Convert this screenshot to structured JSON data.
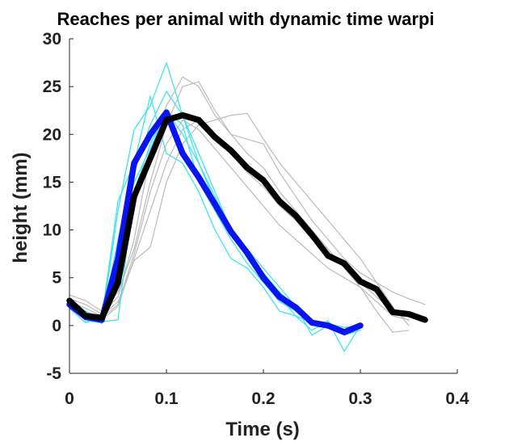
{
  "chart_data": {
    "type": "line",
    "title": "Reaches per animal with dynamic time warpi",
    "xlabel": "Time (s)",
    "ylabel": "height (mm)",
    "xlim": [
      0,
      0.4
    ],
    "ylim": [
      -5,
      30
    ],
    "xticks": [
      "0",
      "0.1",
      "0.2",
      "0.3",
      "0.4"
    ],
    "yticks": [
      "-5",
      "0",
      "5",
      "10",
      "15",
      "20",
      "25",
      "30"
    ],
    "grid": false,
    "legend": "none",
    "series": [
      {
        "color": "#bbbbbb",
        "width": 1.2,
        "x": [
          0,
          0.0167,
          0.0333,
          0.05,
          0.0667,
          0.0833,
          0.1,
          0.1167,
          0.1333,
          0.15,
          0.1667,
          0.1833,
          0.2,
          0.2167,
          0.2333,
          0.25,
          0.2667,
          0.2833,
          0.3,
          0.3167,
          0.3333,
          0.35
        ],
        "y": [
          3.2,
          2.6,
          1.5,
          3.5,
          8,
          15,
          21,
          25,
          25.5,
          22.5,
          20,
          18,
          16.5,
          14,
          12,
          10,
          8,
          6,
          4,
          2.5,
          1,
          0.6
        ]
      },
      {
        "color": "#bbbbbb",
        "width": 1.2,
        "x": [
          0,
          0.0167,
          0.0333,
          0.05,
          0.0667,
          0.0833,
          0.1,
          0.1167,
          0.1333,
          0.15,
          0.1667,
          0.1833,
          0.2,
          0.2167,
          0.2333,
          0.25,
          0.2667,
          0.2833,
          0.3,
          0.3167,
          0.3333,
          0.35
        ],
        "y": [
          2.5,
          1.8,
          1,
          2.5,
          6.8,
          8.2,
          15,
          19,
          21,
          21.5,
          22,
          22.2,
          19.5,
          17,
          15,
          13,
          11,
          9,
          7,
          4.5,
          2,
          0
        ]
      },
      {
        "color": "#bbbbbb",
        "width": 1.2,
        "x": [
          0,
          0.0167,
          0.0333,
          0.05,
          0.0667,
          0.0833,
          0.1,
          0.1167,
          0.1333,
          0.15,
          0.1667,
          0.1833,
          0.2,
          0.2167,
          0.2333,
          0.25,
          0.2667,
          0.2833,
          0.3,
          0.3167,
          0.3333,
          0.35,
          0.3667
        ],
        "y": [
          2.8,
          2.2,
          1.2,
          3,
          9,
          18,
          23,
          26,
          25,
          22,
          20,
          19.5,
          19,
          16,
          13.5,
          11,
          9,
          7,
          5.5,
          4.5,
          3.5,
          2.8,
          2.2
        ]
      },
      {
        "color": "#bbbbbb",
        "width": 1.2,
        "x": [
          0,
          0.0167,
          0.0333,
          0.05,
          0.0667,
          0.0833,
          0.1,
          0.1167,
          0.1333,
          0.15,
          0.1667,
          0.1833,
          0.2,
          0.2167,
          0.2333,
          0.25,
          0.2667,
          0.2833,
          0.3,
          0.3167,
          0.3333,
          0.35
        ],
        "y": [
          2,
          1.5,
          0.8,
          2.2,
          7.5,
          14,
          19,
          21.5,
          20.5,
          18.5,
          16.5,
          14.5,
          12.5,
          10.5,
          9,
          7.5,
          6,
          5,
          4,
          1.5,
          -0.7,
          -0.5
        ]
      },
      {
        "color": "#bbbbbb",
        "width": 1.2,
        "x": [
          0,
          0.0167,
          0.0333,
          0.05,
          0.0667,
          0.0833,
          0.1,
          0.1167,
          0.1333,
          0.15,
          0.1667,
          0.1833,
          0.2,
          0.2167,
          0.2333,
          0.25,
          0.2667,
          0.2833,
          0.3,
          0.3167,
          0.3333,
          0.35
        ],
        "y": [
          1.8,
          1.2,
          0.6,
          2,
          7,
          12,
          17,
          20.5,
          21.5,
          20,
          18,
          16,
          14.5,
          12.5,
          11,
          9,
          8,
          6,
          4.5,
          3,
          1.5,
          0.5
        ]
      },
      {
        "color": "#3fe3ee",
        "width": 1.3,
        "x": [
          0,
          0.0167,
          0.0333,
          0.05,
          0.0667,
          0.0833,
          0.1,
          0.1167,
          0.1333,
          0.15,
          0.1667,
          0.1833,
          0.2,
          0.2167,
          0.2333,
          0.25,
          0.2667,
          0.2833,
          0.3
        ],
        "y": [
          2.5,
          0.5,
          0.3,
          12,
          20.5,
          23,
          27.5,
          22,
          17,
          13,
          10,
          7,
          5,
          3,
          1,
          0.3,
          0,
          -1,
          -0.5
        ]
      },
      {
        "color": "#3fe3ee",
        "width": 1.3,
        "x": [
          0,
          0.0167,
          0.0333,
          0.05,
          0.0667,
          0.0833,
          0.1,
          0.1167,
          0.1333,
          0.15,
          0.1667,
          0.1833,
          0.2,
          0.2167,
          0.2333,
          0.25,
          0.2667,
          0.2833,
          0.3
        ],
        "y": [
          1.8,
          0.3,
          0.8,
          13,
          17,
          24,
          18,
          17,
          14,
          10,
          7,
          6,
          4,
          1.5,
          1,
          -0.5,
          0.5,
          -2.7,
          0
        ]
      },
      {
        "color": "#3fe3ee",
        "width": 1.3,
        "x": [
          0,
          0.0167,
          0.0333,
          0.05,
          0.0667,
          0.0833,
          0.1,
          0.1167,
          0.1333,
          0.15,
          0.1667,
          0.1833,
          0.2,
          0.2167,
          0.2333,
          0.25,
          0.2667,
          0.2833,
          0.3
        ],
        "y": [
          2.2,
          0.8,
          0.5,
          9,
          16,
          21,
          24.5,
          22,
          18,
          14,
          10,
          8,
          6,
          4,
          2,
          -1,
          0,
          -0.7,
          0
        ]
      },
      {
        "color": "#3fe3ee",
        "width": 1.3,
        "x": [
          0,
          0.0167,
          0.0333,
          0.05,
          0.0667,
          0.0833,
          0.1,
          0.1167,
          0.1333,
          0.15,
          0.1667,
          0.1833,
          0.2,
          0.2167,
          0.2333,
          0.25,
          0.2667,
          0.2833,
          0.3
        ],
        "y": [
          2.6,
          1.5,
          0.4,
          0.6,
          14,
          19,
          22.5,
          20,
          17,
          13.5,
          10,
          7.5,
          5.5,
          3.5,
          2,
          0.5,
          0.2,
          -0.2,
          0
        ]
      },
      {
        "color": "#3fe3ee",
        "width": 1.3,
        "x": [
          0,
          0.0167,
          0.0333,
          0.05,
          0.0667,
          0.0833,
          0.1,
          0.1167,
          0.1333,
          0.15,
          0.1667,
          0.1833,
          0.2,
          0.2167,
          0.2333,
          0.25,
          0.2667,
          0.2833,
          0.3
        ],
        "y": [
          2,
          1.2,
          0.2,
          8,
          15,
          18.5,
          22.5,
          21,
          15,
          12,
          9,
          6.5,
          4.5,
          2.5,
          1.5,
          0,
          0.3,
          -0.5,
          0
        ]
      },
      {
        "color": "#0a14f0",
        "width": 7.5,
        "x": [
          0,
          0.0167,
          0.0333,
          0.05,
          0.0667,
          0.0833,
          0.1,
          0.1167,
          0.1333,
          0.15,
          0.1667,
          0.1833,
          0.2,
          0.2167,
          0.2333,
          0.25,
          0.2667,
          0.2833,
          0.3
        ],
        "y": [
          2.2,
          0.9,
          0.6,
          7,
          17,
          20,
          22.3,
          18,
          15.5,
          12.7,
          9.8,
          7.6,
          5,
          3,
          1.9,
          0.3,
          0,
          -0.7,
          0
        ]
      },
      {
        "color": "#000000",
        "width": 7.5,
        "x": [
          0,
          0.0167,
          0.0333,
          0.05,
          0.0667,
          0.0833,
          0.1,
          0.1167,
          0.1333,
          0.15,
          0.1667,
          0.1833,
          0.2,
          0.2167,
          0.2333,
          0.25,
          0.2667,
          0.2833,
          0.3,
          0.3167,
          0.3333,
          0.35,
          0.3667
        ],
        "y": [
          2.6,
          1,
          0.8,
          4.5,
          13.5,
          17.5,
          21.5,
          22,
          21.5,
          19.7,
          18.3,
          16.5,
          15.2,
          13,
          11.5,
          9.5,
          7.3,
          6.5,
          4.6,
          3.8,
          1.4,
          1.2,
          0.6
        ]
      }
    ]
  }
}
